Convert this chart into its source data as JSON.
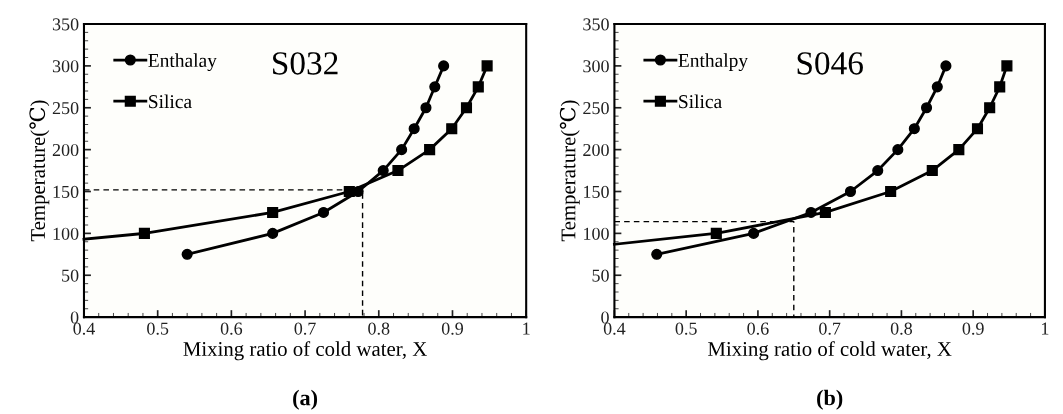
{
  "chart_data": [
    {
      "type": "line",
      "title": "S032",
      "xlabel": "Mixing ratio of cold water, X",
      "ylabel": "Temperature(℃)",
      "xlim": [
        0.4,
        1
      ],
      "ylim": [
        0,
        350
      ],
      "xticks": [
        0.4,
        0.5,
        0.6,
        0.7,
        0.8,
        0.9,
        1
      ],
      "yticks": [
        0,
        50,
        100,
        150,
        200,
        250,
        300,
        350
      ],
      "legend": "top left",
      "grid": false,
      "annotations": [
        "(a)"
      ],
      "series": [
        {
          "name": "Enthalay",
          "color": "#000000",
          "marker": "circle",
          "x": [
            0.54,
            0.656,
            0.725,
            0.772,
            0.806,
            0.831,
            0.848,
            0.864,
            0.876,
            0.888
          ],
          "values": [
            75,
            100,
            125,
            150,
            175,
            200,
            225,
            250,
            275,
            300
          ]
        },
        {
          "name": "Silica",
          "color": "#000000",
          "marker": "square",
          "x": [
            0.482,
            0.656,
            0.76,
            0.826,
            0.869,
            0.899,
            0.919,
            0.935,
            0.947
          ],
          "values": [
            100,
            125,
            150,
            175,
            200,
            225,
            250,
            275,
            300
          ]
        },
        {
          "color": "#000000",
          "marker": "none",
          "x": [
            0.4,
            0.482
          ],
          "values": [
            93,
            100
          ]
        },
        {
          "color": "#000000",
          "marker": "none",
          "line_style": "dashed",
          "x": [
            0.4,
            0.778,
            0.778
          ],
          "values": [
            152,
            152,
            0
          ]
        }
      ]
    },
    {
      "type": "line",
      "title": "S046",
      "xlabel": "Mixing ratio of cold water, X",
      "ylabel": "Temperature(℃)",
      "xlim": [
        0.4,
        1
      ],
      "ylim": [
        0,
        350
      ],
      "xticks": [
        0.4,
        0.5,
        0.6,
        0.7,
        0.8,
        0.9,
        1
      ],
      "yticks": [
        0,
        50,
        100,
        150,
        200,
        250,
        300,
        350
      ],
      "legend": "top left",
      "grid": false,
      "annotations": [
        "(b)"
      ],
      "series": [
        {
          "name": "Enthalpy",
          "color": "#000000",
          "marker": "circle",
          "x": [
            0.459,
            0.594,
            0.674,
            0.729,
            0.767,
            0.795,
            0.818,
            0.835,
            0.85,
            0.862
          ],
          "values": [
            75,
            100,
            125,
            150,
            175,
            200,
            225,
            250,
            275,
            300
          ]
        },
        {
          "name": "Silica",
          "color": "#000000",
          "marker": "square",
          "x": [
            0.542,
            0.694,
            0.785,
            0.843,
            0.88,
            0.906,
            0.923,
            0.937,
            0.947
          ],
          "values": [
            100,
            125,
            150,
            175,
            200,
            225,
            250,
            275,
            300
          ]
        },
        {
          "color": "#000000",
          "marker": "none",
          "x": [
            0.4,
            0.542
          ],
          "values": [
            87,
            100
          ]
        },
        {
          "color": "#000000",
          "marker": "none",
          "line_style": "dashed",
          "x": [
            0.4,
            0.65,
            0.65
          ],
          "values": [
            114,
            114,
            0
          ]
        }
      ]
    }
  ]
}
